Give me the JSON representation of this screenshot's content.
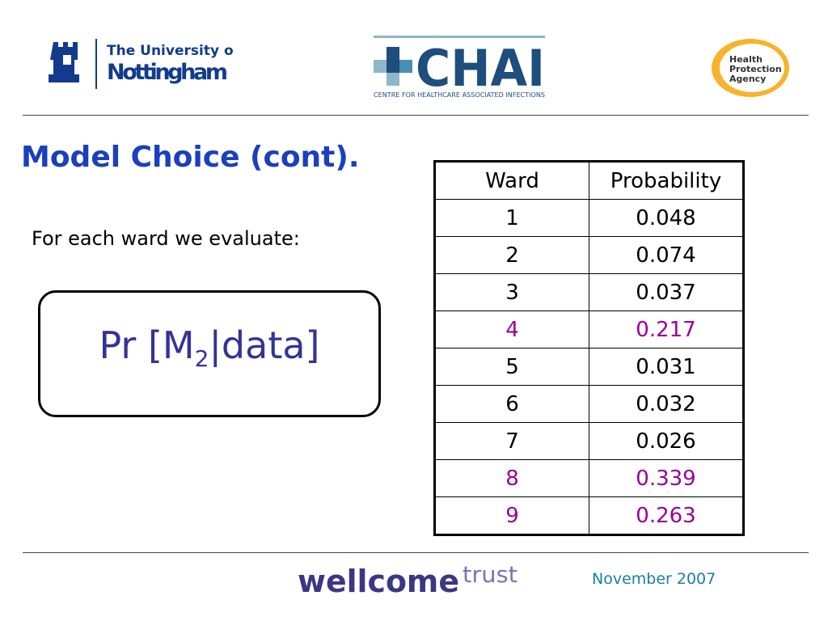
{
  "header": {
    "nottingham": {
      "line1": "The University of",
      "line2": "Nottingham"
    },
    "chai": {
      "name": "CHAI",
      "subtitle": "CENTRE FOR HEALTHCARE ASSOCIATED INFECTIONS"
    },
    "hpa": {
      "line1": "Health",
      "line2": "Protection",
      "line3": "Agency"
    }
  },
  "title": "Model Choice (cont).",
  "intro": "For each ward we evaluate:",
  "formula": {
    "main": "Pr [M",
    "subscript": "2",
    "rest": "|data]"
  },
  "table": {
    "header": [
      "Ward",
      "Probability"
    ],
    "rows": [
      {
        "cells": [
          "1",
          "0.048"
        ],
        "color": "#000000"
      },
      {
        "cells": [
          "2",
          "0.074"
        ],
        "color": "#000000"
      },
      {
        "cells": [
          "3",
          "0.037"
        ],
        "color": "#000000"
      },
      {
        "cells": [
          "4",
          "0.217"
        ],
        "color": "#990099"
      },
      {
        "cells": [
          "5",
          "0.031"
        ],
        "color": "#000000"
      },
      {
        "cells": [
          "6",
          "0.032"
        ],
        "color": "#000000"
      },
      {
        "cells": [
          "7",
          "0.026"
        ],
        "color": "#000000"
      },
      {
        "cells": [
          "8",
          "0.339"
        ],
        "color": "#990099"
      },
      {
        "cells": [
          "9",
          "0.263"
        ],
        "color": "#990099"
      }
    ]
  },
  "footer": {
    "wellcome": "wellcome",
    "trust": "trust",
    "date": "November 2007"
  }
}
